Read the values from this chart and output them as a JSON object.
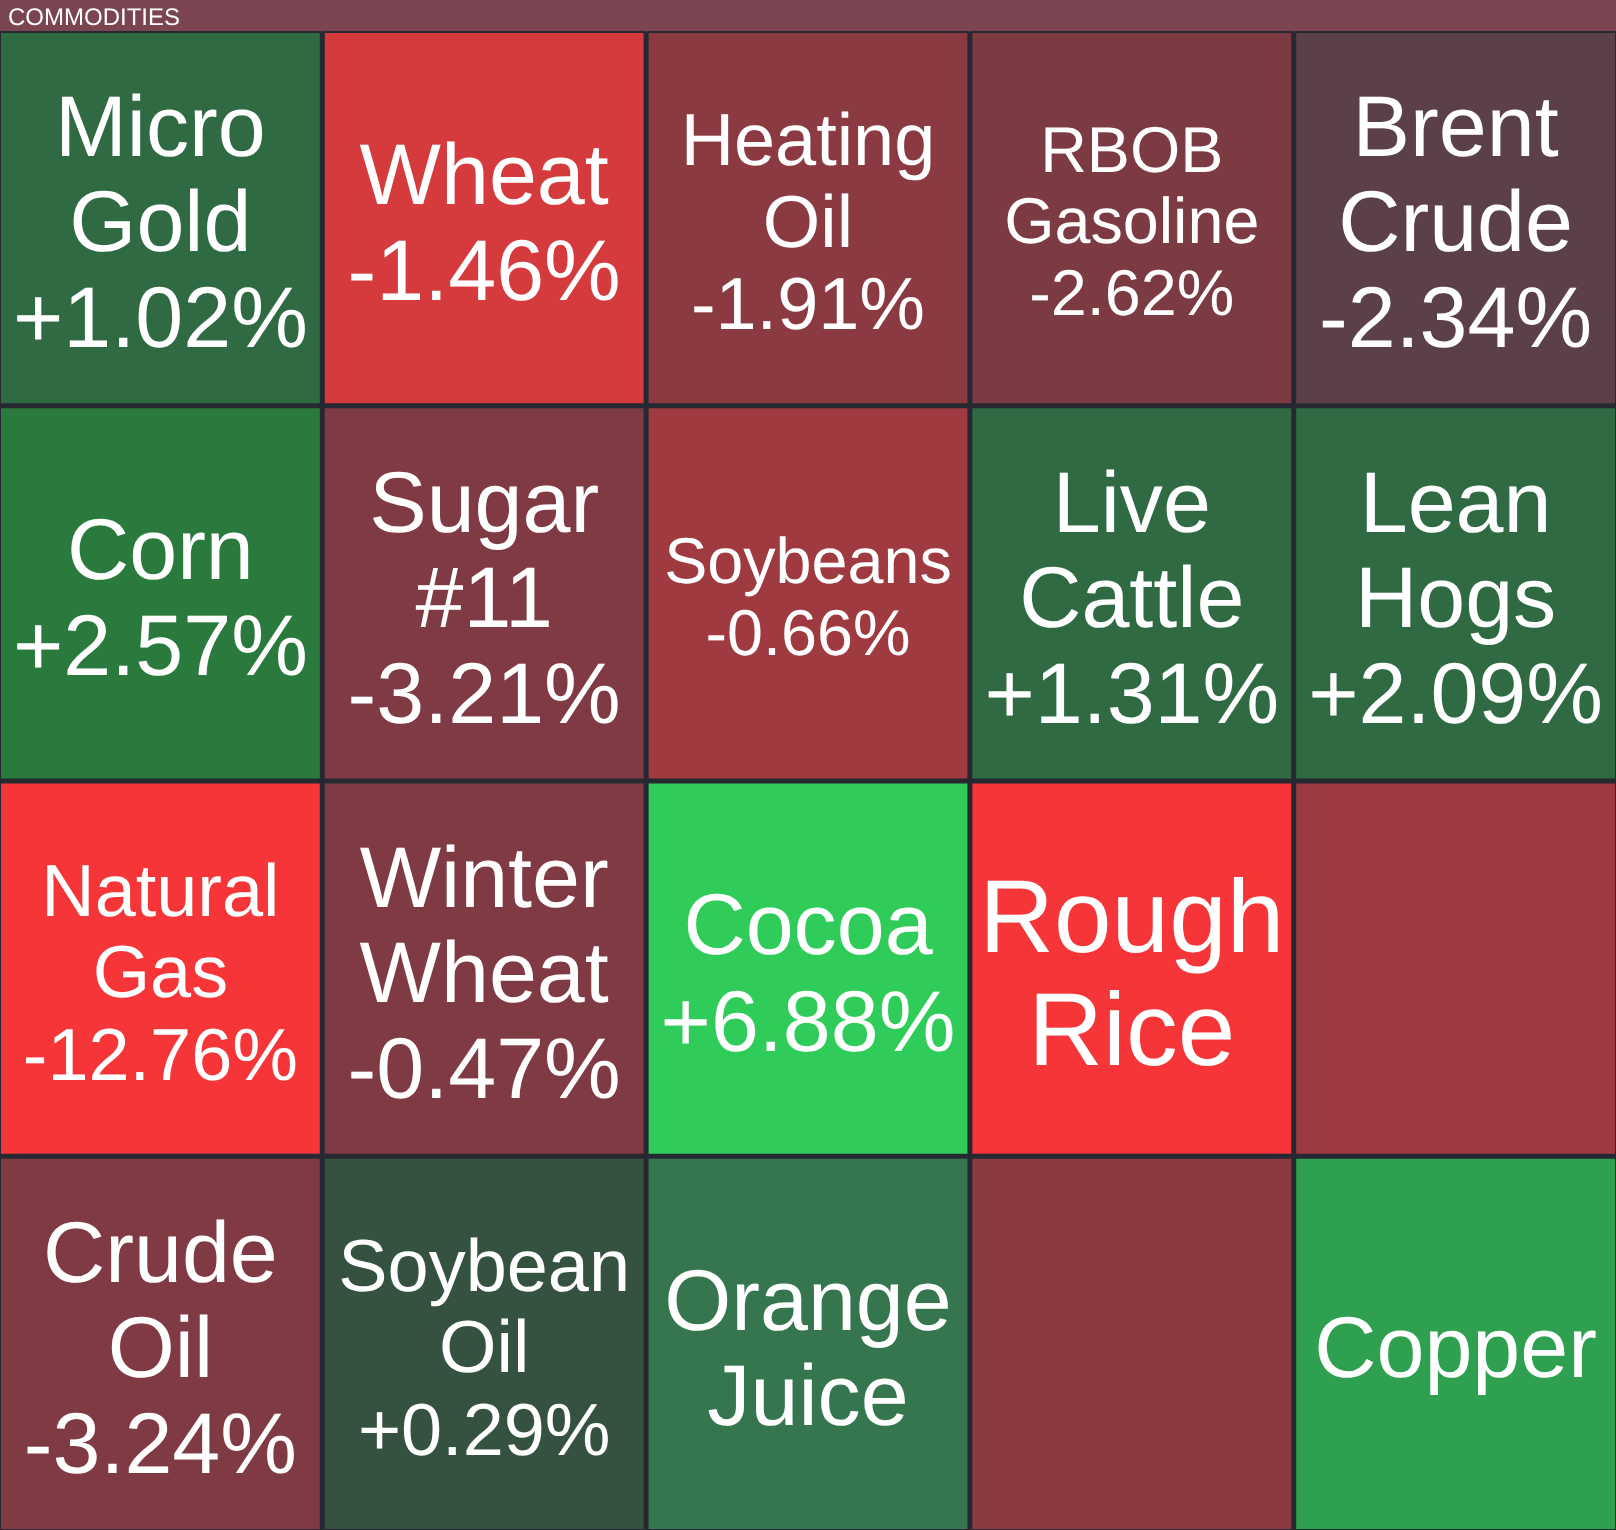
{
  "chart_data": {
    "type": "other",
    "title": "COMMODITIES",
    "categories": [
      "Micro Gold",
      "Corn",
      "Natural Gas",
      "Crude Oil",
      "Wheat",
      "Heating Oil",
      "RBOB Gasoline",
      "Brent Crude",
      "Sugar #11",
      "Winter Wheat",
      "Soybean Oil",
      "Soybeans",
      "Live Cattle",
      "Lean Hogs",
      "Cocoa",
      "Orange Juice",
      "Rough Rice",
      null,
      null,
      "Copper"
    ],
    "values": [
      1.02,
      2.57,
      -12.76,
      -3.24,
      -1.46,
      -1.91,
      -2.62,
      -2.34,
      -3.21,
      -0.47,
      0.29,
      -0.66,
      1.31,
      2.09,
      6.88,
      null,
      null,
      null,
      null,
      null
    ],
    "value_labels": [
      "+1.02%",
      "+2.57%",
      "-12.76%",
      "-3.24%",
      "-1.46%",
      "-1.91%",
      "-2.62%",
      "-2.34%",
      "-3.21%",
      "-0.47%",
      "+0.29%",
      "-0.66%",
      "+1.31%",
      "+2.09%",
      "+6.88%",
      null,
      null,
      null,
      null,
      null
    ],
    "colors": [
      "#2f6a43",
      "#2a7a3e",
      "#f63538",
      "#7f3a44",
      "#d53a3d",
      "#8b3a42",
      "#7c3a43",
      "#5b4048",
      "#7f3a44",
      "#803a43",
      "#35513f",
      "#9e3a40",
      "#2f6a43",
      "#2f6a43",
      "#30cc5a",
      "#35764e",
      "#f63538",
      "#9c3a42",
      "#8b3a42",
      "#2ea04f"
    ]
  }
}
